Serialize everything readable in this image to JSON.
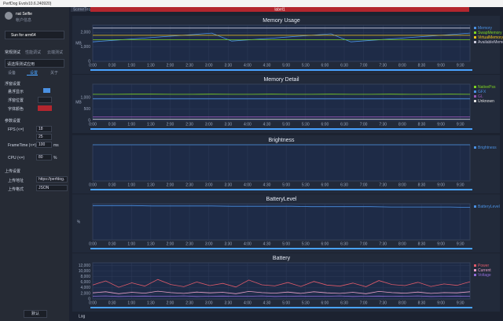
{
  "window": {
    "title": "PerfDog Evolv10.6.240920)"
  },
  "account": {
    "name": "nat Selfie",
    "info": "帐户信息"
  },
  "device": "Sun for arm64",
  "modes": [
    "常规测试",
    "性能调试",
    "云端测试"
  ],
  "app_select": "请选择测试应用",
  "tabs": [
    "设备",
    "设置",
    "关于"
  ],
  "settings": {
    "float_title": "浮窗设置",
    "float_rows": [
      "悬浮显示",
      "浮窗位置",
      "字体颜色"
    ],
    "param_title": "参数设置",
    "fps_label": "FPS (<=)",
    "fps_values": [
      18,
      25
    ],
    "frametime_label": "FrameTime (<=)",
    "frametime_value": 100,
    "frametime_unit": "ms",
    "cpu_label": "CPU (<=)",
    "cpu_value": 80,
    "cpu_unit": "%",
    "upload_title": "上传设置",
    "upload_addr_label": "上传地址",
    "upload_addr": "https://perfdog.",
    "upload_fmt_label": "上传格式",
    "upload_fmt": "JSON"
  },
  "footer_button": "默认",
  "toolbar": {
    "scene": "SceneTest",
    "label": "label1"
  },
  "time_ticks": [
    "0:00",
    "0:30",
    "1:00",
    "1:30",
    "2:00",
    "2:30",
    "3:00",
    "3:30",
    "4:00",
    "4:30",
    "5:00",
    "5:30",
    "6:00",
    "6:30",
    "7:00",
    "7:30",
    "8:00",
    "8:30",
    "9:00",
    "9:30"
  ],
  "charts": [
    {
      "title": "Memory Usage",
      "unit": "MB",
      "ylim": [
        0,
        2500
      ],
      "yticks": [
        0,
        {
          "value": 1000,
          "label": "1,000"
        },
        {
          "value": 2000,
          "label": "2,000"
        }
      ],
      "series": [
        {
          "name": "Memory",
          "color": "#4a90e2",
          "values": [
            1350,
            1450,
            1550,
            1650,
            1750,
            1850,
            1950,
            1400,
            1500,
            1600,
            1700,
            1800,
            1900,
            1350,
            1450,
            1550,
            1650,
            1750,
            1850,
            1950
          ]
        },
        {
          "name": "SwapMemory",
          "color": "#7ed321",
          "values": [
            1500,
            1500,
            1500,
            1500,
            1500,
            1500,
            1500,
            1500,
            1500,
            1500,
            1500,
            1500,
            1500,
            1500,
            1500,
            1500,
            1500,
            1500,
            1500,
            1500
          ]
        },
        {
          "name": "VirtualMemory",
          "color": "#f5c518",
          "values": [
            1800,
            1800,
            1800,
            1800,
            1800,
            1800,
            1800,
            1800,
            1800,
            1800,
            1800,
            1800,
            1800,
            1800,
            1800,
            1800,
            1800,
            1800,
            1800,
            1800
          ]
        },
        {
          "name": "AvailableMemory",
          "color": "#c9c9d9",
          "values": [
            2300,
            2300,
            2300,
            2300,
            2300,
            2300,
            2300,
            2300,
            2300,
            2300,
            2300,
            2300,
            2300,
            2300,
            2300,
            2300,
            2300,
            2300,
            2300,
            2300
          ]
        }
      ]
    },
    {
      "title": "Memory Detail",
      "unit": "MB",
      "ylim": [
        0,
        1600
      ],
      "yticks": [
        0,
        500,
        {
          "value": 1000,
          "label": "1,000"
        }
      ],
      "series": [
        {
          "name": "NativePss",
          "color": "#7ed321",
          "values": [
            1150,
            1150,
            1160,
            1160,
            1150,
            1150,
            1160,
            1150,
            1150,
            1160,
            1150,
            1150,
            1160,
            1150,
            1150,
            1160,
            1150,
            1150,
            1160,
            1150
          ]
        },
        {
          "name": "GFX",
          "color": "#4a90e2",
          "values": [
            950,
            950,
            950,
            950,
            950,
            950,
            950,
            950,
            950,
            950,
            950,
            950,
            950,
            950,
            950,
            950,
            950,
            950,
            950,
            950
          ]
        },
        {
          "name": "GL",
          "color": "#9b59b6",
          "values": [
            150,
            150,
            150,
            150,
            150,
            150,
            150,
            150,
            150,
            150,
            150,
            150,
            150,
            150,
            150,
            150,
            150,
            150,
            150,
            150
          ]
        },
        {
          "name": "Unknown",
          "color": "#e0e0e0",
          "values": [
            50,
            50,
            50,
            50,
            50,
            50,
            50,
            50,
            50,
            50,
            50,
            50,
            50,
            50,
            50,
            50,
            50,
            50,
            50,
            50
          ]
        }
      ]
    },
    {
      "title": "Brightness",
      "ylim": [
        0,
        100
      ],
      "yticks": [],
      "series": [
        {
          "name": "Brightness",
          "color": "#4a90e2",
          "values": [
            100,
            100,
            100,
            100,
            100,
            100,
            100,
            100,
            100,
            100,
            100,
            100,
            100,
            100,
            100,
            100,
            100,
            100,
            100,
            100
          ]
        }
      ]
    },
    {
      "title": "BatteryLevel",
      "unit": "%",
      "ylim": [
        0,
        100
      ],
      "yticks": [],
      "series": [
        {
          "name": "BatteryLevel",
          "color": "#4a90e2",
          "values": [
            95,
            95,
            95,
            94,
            94,
            94,
            94,
            93,
            93,
            93,
            93,
            92,
            92,
            92,
            92,
            91,
            91,
            91,
            91,
            90
          ]
        }
      ]
    },
    {
      "title": "Battery",
      "ylim": [
        0,
        13000
      ],
      "yticks": [
        0,
        {
          "value": 2000,
          "label": "2,000"
        },
        {
          "value": 4000,
          "label": "4,000"
        },
        {
          "value": 6000,
          "label": "6,000"
        },
        {
          "value": 8000,
          "label": "8,000"
        },
        {
          "value": 10000,
          "label": "10,000"
        },
        {
          "value": 12000,
          "label": "12,000"
        }
      ],
      "series": [
        {
          "name": "Power",
          "color": "#e05a6a",
          "values": [
            5000,
            6500,
            4200,
            5800,
            4600,
            7000,
            5200,
            4400,
            6100,
            4800,
            5600,
            4300,
            6800,
            5100,
            4700,
            5900,
            4500,
            6300,
            5000,
            4600,
            5700,
            4400,
            6600,
            5200,
            4800,
            6000,
            4500,
            5400,
            4900,
            6200
          ]
        },
        {
          "name": "Current",
          "color": "#e8a0c8",
          "values": [
            2200,
            2600,
            1900,
            2400,
            2100,
            2800,
            2300,
            2000,
            2500,
            2200,
            2400,
            1900,
            2700,
            2300,
            2100,
            2500,
            2000,
            2600,
            2200,
            2000,
            2400,
            1900,
            2700,
            2300,
            2100,
            2500,
            2000,
            2300,
            2200,
            2600
          ]
        },
        {
          "name": "Voltage",
          "color": "#8e6bd6",
          "values": [
            1000,
            1100,
            900,
            1000,
            1050,
            950,
            1000,
            1100,
            900,
            1000,
            1050,
            950,
            1000,
            1100,
            900,
            1000,
            1050,
            950,
            1000,
            1100,
            900,
            1000,
            1050,
            950,
            1000,
            1100,
            900,
            1000,
            1050,
            950
          ]
        }
      ]
    }
  ],
  "log": "Log"
}
